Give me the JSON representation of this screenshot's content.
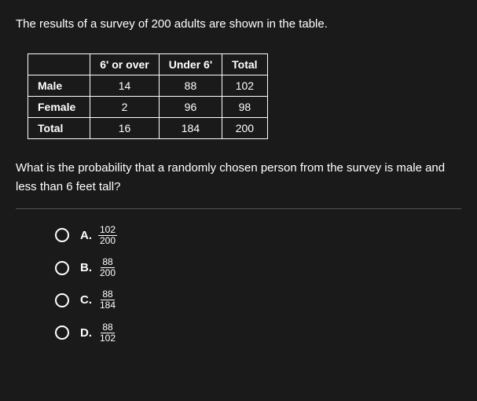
{
  "intro_text": "The results of a survey of 200 adults are shown in the table.",
  "table": {
    "headers": [
      "6' or over",
      "Under 6'",
      "Total"
    ],
    "rows": [
      {
        "label": "Male",
        "cells": [
          "14",
          "88",
          "102"
        ]
      },
      {
        "label": "Female",
        "cells": [
          "2",
          "96",
          "98"
        ]
      },
      {
        "label": "Total",
        "cells": [
          "16",
          "184",
          "200"
        ]
      }
    ]
  },
  "question_text": "What is the probability that a randomly chosen person from the survey is male and less than 6 feet tall?",
  "options": [
    {
      "letter": "A.",
      "numerator": "102",
      "denominator": "200"
    },
    {
      "letter": "B.",
      "numerator": "88",
      "denominator": "200"
    },
    {
      "letter": "C.",
      "numerator": "88",
      "denominator": "184"
    },
    {
      "letter": "D.",
      "numerator": "88",
      "denominator": "102"
    }
  ],
  "colors": {
    "background": "#1a1a1a",
    "text": "#ffffff",
    "border": "#ffffff",
    "divider": "#555555"
  }
}
